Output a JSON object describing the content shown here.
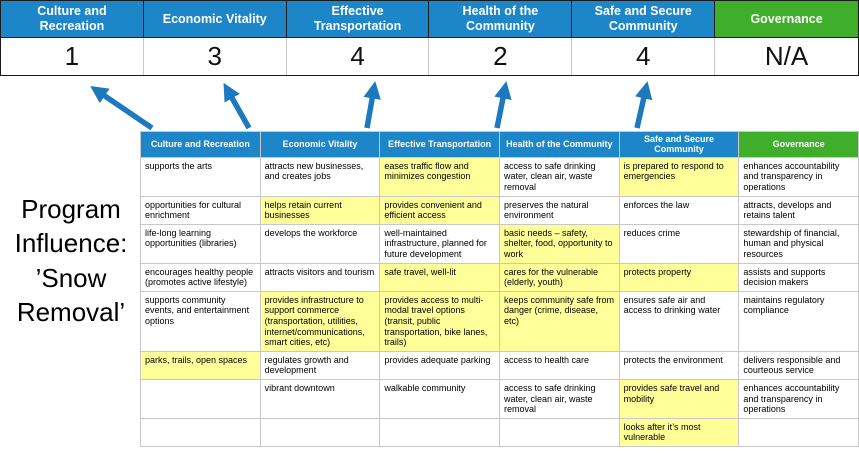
{
  "title": "Program Influence: ’Snow Removal’",
  "colors": {
    "header_blue": "#1d86c8",
    "header_green": "#3fae2a",
    "highlight_yellow": "#ffff99",
    "arrow_blue": "#1c79c0"
  },
  "score_band": {
    "columns": [
      {
        "label": "Culture and Recreation",
        "score": "1",
        "color": "blue"
      },
      {
        "label": "Economic Vitality",
        "score": "3",
        "color": "blue"
      },
      {
        "label": "Effective Transportation",
        "score": "4",
        "color": "blue"
      },
      {
        "label": "Health of the Community",
        "score": "2",
        "color": "blue"
      },
      {
        "label": "Safe and Secure Community",
        "score": "4",
        "color": "blue"
      },
      {
        "label": "Governance",
        "score": "N/A",
        "color": "green"
      }
    ]
  },
  "matrix": {
    "headers": [
      {
        "label": "Culture and Recreation",
        "color": "blue"
      },
      {
        "label": "Economic Vitality",
        "color": "blue"
      },
      {
        "label": "Effective Transportation",
        "color": "blue"
      },
      {
        "label": "Health of the Community",
        "color": "blue"
      },
      {
        "label": "Safe and Secure Community",
        "color": "blue"
      },
      {
        "label": "Governance",
        "color": "green"
      }
    ],
    "rows": [
      [
        {
          "text": "supports the arts",
          "hl": false
        },
        {
          "text": "attracts new businesses, and creates jobs",
          "hl": false
        },
        {
          "text": "eases traffic flow and minimizes congestion",
          "hl": true
        },
        {
          "text": "access to safe drinking water, clean air, waste removal",
          "hl": false
        },
        {
          "text": "is prepared to respond to emergencies",
          "hl": true
        },
        {
          "text": "enhances accountability and transparency in operations",
          "hl": false
        }
      ],
      [
        {
          "text": "opportunities for cultural enrichment",
          "hl": false
        },
        {
          "text": "helps retain current businesses",
          "hl": true
        },
        {
          "text": "provides convenient and efficient access",
          "hl": true
        },
        {
          "text": "preserves the natural environment",
          "hl": false
        },
        {
          "text": "enforces the law",
          "hl": false
        },
        {
          "text": "attracts, develops and retains talent",
          "hl": false
        }
      ],
      [
        {
          "text": "life-long learning opportunities (libraries)",
          "hl": false
        },
        {
          "text": "develops the workforce",
          "hl": false
        },
        {
          "text": "well-maintained infrastructure, planned for future development",
          "hl": false
        },
        {
          "text": "basic needs – safety, shelter, food, opportunity to work",
          "hl": true
        },
        {
          "text": "reduces crime",
          "hl": false
        },
        {
          "text": "stewardship of financial, human and physical resources",
          "hl": false
        }
      ],
      [
        {
          "text": "encourages healthy people (promotes active lifestyle)",
          "hl": false
        },
        {
          "text": "attracts visitors and tourism",
          "hl": false
        },
        {
          "text": "safe travel, well-lit",
          "hl": true
        },
        {
          "text": "cares for the vulnerable (elderly, youth)",
          "hl": true
        },
        {
          "text": "protects property",
          "hl": true
        },
        {
          "text": "assists and supports decision makers",
          "hl": false
        }
      ],
      [
        {
          "text": "supports community events, and entertainment options",
          "hl": false
        },
        {
          "text": "provides infrastructure to support commerce (transportation, utilities, internet/communications, smart cities, etc)",
          "hl": true
        },
        {
          "text": "provides access to multi-modal travel options (transit, public transportation, bike lanes, trails)",
          "hl": true
        },
        {
          "text": "keeps community safe from danger (crime, disease, etc)",
          "hl": true
        },
        {
          "text": "ensures safe air and access to drinking water",
          "hl": false
        },
        {
          "text": "maintains regulatory compliance",
          "hl": false
        }
      ],
      [
        {
          "text": "parks, trails, open spaces",
          "hl": true
        },
        {
          "text": "regulates growth and development",
          "hl": false
        },
        {
          "text": "provides adequate parking",
          "hl": false
        },
        {
          "text": "access to health care",
          "hl": false
        },
        {
          "text": "protects the environment",
          "hl": false
        },
        {
          "text": "delivers responsible and courteous service",
          "hl": false
        }
      ],
      [
        {
          "text": "",
          "hl": false
        },
        {
          "text": "vibrant downtown",
          "hl": false
        },
        {
          "text": "walkable community",
          "hl": false
        },
        {
          "text": "access to safe drinking water, clean air, waste removal",
          "hl": false
        },
        {
          "text": "provides safe travel and mobility",
          "hl": true
        },
        {
          "text": "enhances accountability and transparency in operations",
          "hl": false
        }
      ],
      [
        {
          "text": "",
          "hl": false
        },
        {
          "text": "",
          "hl": false
        },
        {
          "text": "",
          "hl": false
        },
        {
          "text": "",
          "hl": false
        },
        {
          "text": "looks after it’s most vulnerable",
          "hl": true
        },
        {
          "text": "",
          "hl": false
        }
      ]
    ]
  }
}
